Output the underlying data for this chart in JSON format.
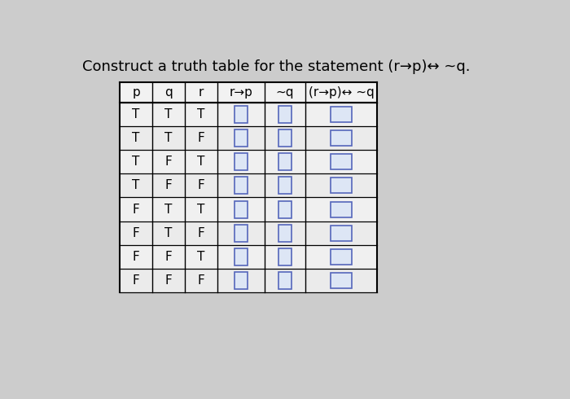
{
  "title": "Construct a truth table for the statement (r→p)↔ ~q.",
  "headers": [
    "p",
    "q",
    "r",
    "r→p",
    "~q",
    "(r→p)↔ ~q"
  ],
  "rows": [
    [
      "T",
      "T",
      "T"
    ],
    [
      "T",
      "T",
      "F"
    ],
    [
      "T",
      "F",
      "T"
    ],
    [
      "T",
      "F",
      "F"
    ],
    [
      "F",
      "T",
      "T"
    ],
    [
      "F",
      "T",
      "F"
    ],
    [
      "F",
      "F",
      "T"
    ],
    [
      "F",
      "F",
      "F"
    ]
  ],
  "n_cols": 6,
  "n_rows": 8,
  "bg_color": "#cccccc",
  "table_bg": "#f2f2f2",
  "box_border_color": "#5566bb",
  "box_fill_color": "#dde6f5",
  "font_size_title": 13,
  "font_size_header": 11,
  "font_size_cell": 11
}
